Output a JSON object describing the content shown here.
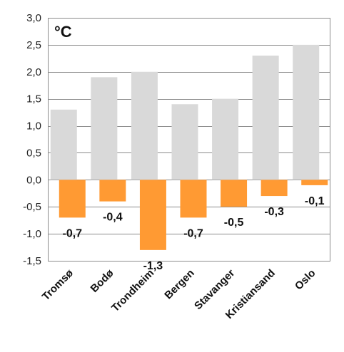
{
  "chart_data": {
    "type": "bar",
    "unit_label": "°C",
    "categories": [
      "Tromsø",
      "Bodø",
      "Trondheim",
      "Bergen",
      "Stavanger",
      "Kristiansand",
      "Oslo"
    ],
    "series": [
      {
        "values": [
          1.3,
          1.9,
          2.0,
          1.4,
          1.5,
          2.3,
          2.5
        ],
        "color": "#d9d9d9"
      },
      {
        "values": [
          -0.7,
          -0.4,
          -1.3,
          -0.7,
          -0.5,
          -0.3,
          -0.1
        ],
        "color": "#ff9a33"
      }
    ],
    "data_labels": [
      "-0,7",
      "-0,4",
      "-1,3",
      "-0,7",
      "-0,5",
      "-0,3",
      "-0,1"
    ],
    "y_ticks": [
      3.0,
      2.5,
      2.0,
      1.5,
      1.0,
      0.5,
      0.0,
      -0.5,
      -1.0,
      -1.5
    ],
    "y_tick_labels": [
      "3,0",
      "2,5",
      "2,0",
      "1,5",
      "1,0",
      "0,5",
      "0,0",
      "-0,5",
      "-1,0",
      "-1,5"
    ],
    "ylim": [
      -1.5,
      3.0
    ],
    "grid": true,
    "legend": "none"
  }
}
